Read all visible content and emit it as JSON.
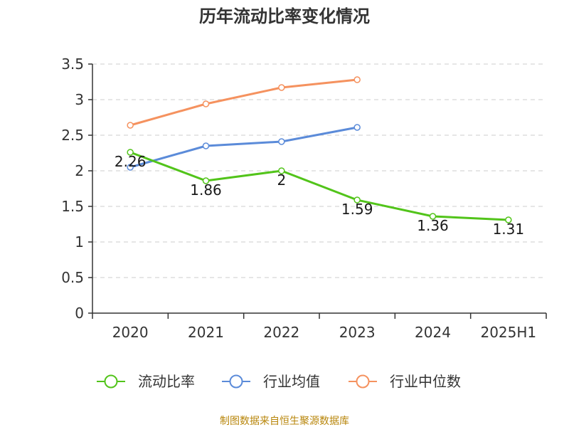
{
  "chart_data": {
    "type": "line",
    "title": "历年流动比率变化情况",
    "categories": [
      "2020",
      "2021",
      "2022",
      "2023",
      "2024",
      "2025H1"
    ],
    "ylim": [
      0,
      3.5
    ],
    "yticks": [
      "0",
      "0.5",
      "1",
      "1.5",
      "2",
      "2.5",
      "3",
      "3.5"
    ],
    "grid": true,
    "legend_position": "bottom",
    "series": [
      {
        "name": "流动比率",
        "color": "#52c41a",
        "values": [
          2.26,
          1.86,
          2,
          1.59,
          1.36,
          1.31
        ],
        "labels": [
          "2.26",
          "1.86",
          "2",
          "1.59",
          "1.36",
          "1.31"
        ]
      },
      {
        "name": "行业均值",
        "color": "#5b8bd9",
        "values": [
          2.05,
          2.35,
          2.41,
          2.61,
          null,
          null
        ]
      },
      {
        "name": "行业中位数",
        "color": "#f5925f",
        "values": [
          2.64,
          2.94,
          3.17,
          3.28,
          null,
          null
        ]
      }
    ]
  },
  "source_text": "制图数据来自恒生聚源数据库"
}
